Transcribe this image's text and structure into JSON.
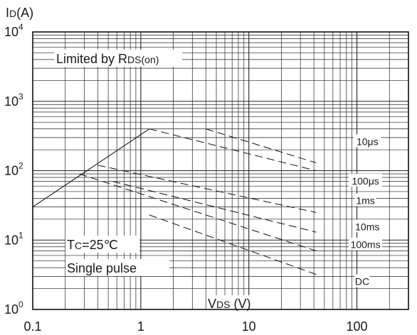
{
  "chart_data": {
    "type": "line",
    "title": "",
    "ylabel_main": "I",
    "ylabel_sub": "D",
    "ylabel_unit": "(A)",
    "xlabel_main": "V",
    "xlabel_sub": "DS",
    "xlabel_unit": " (V)",
    "x_scale": "log",
    "y_scale": "log",
    "xlim": [
      0.1,
      300
    ],
    "ylim": [
      1,
      10000
    ],
    "grid": true,
    "x_ticks": [
      {
        "value": 0.1,
        "label": "0.1"
      },
      {
        "value": 1,
        "label": "1"
      },
      {
        "value": 10,
        "label": "10"
      },
      {
        "value": 100,
        "label": "100"
      }
    ],
    "y_ticks": [
      {
        "value": 1,
        "base": "10",
        "exp": "0"
      },
      {
        "value": 10,
        "base": "10",
        "exp": "1"
      },
      {
        "value": 100,
        "base": "10",
        "exp": "2"
      },
      {
        "value": 1000,
        "base": "10",
        "exp": "3"
      },
      {
        "value": 10000,
        "base": "10",
        "exp": "4"
      }
    ],
    "annotations": {
      "limit_pre": "Limited by R",
      "limit_sub": "DS(on)",
      "tc_pre": "T",
      "tc_sub": "C",
      "tc_post": "=25℃",
      "pulse": "Single pulse"
    },
    "series": [
      {
        "name": "Limited by RDS(on)",
        "style": "solid",
        "x": [
          0.1,
          1.2
        ],
        "y": [
          30,
          400
        ]
      },
      {
        "name": "10μs",
        "style": "dashed",
        "x": [
          1.2,
          42
        ],
        "y": [
          400,
          100
        ]
      },
      {
        "name": "",
        "style": "dashed",
        "x": [
          4.0,
          42
        ],
        "y": [
          400,
          130
        ]
      },
      {
        "name": "100μs",
        "style": "dashed",
        "x": [
          0.4,
          42
        ],
        "y": [
          120,
          25
        ]
      },
      {
        "name": "1ms",
        "style": "dashed",
        "x": [
          0.55,
          42
        ],
        "y": [
          70,
          13
        ]
      },
      {
        "name": "10ms",
        "style": "dashed",
        "x": [
          0.27,
          42
        ],
        "y": [
          90,
          7
        ]
      },
      {
        "name": "100ms",
        "style": "dashed",
        "x": [
          1.2,
          42
        ],
        "y": [
          23,
          3.2
        ]
      }
    ],
    "curve_labels": [
      {
        "text": "10μs",
        "x": 125,
        "y": 270
      },
      {
        "text": "100μs",
        "x": 120,
        "y": 73
      },
      {
        "text": "1ms",
        "x": 120,
        "y": 38
      },
      {
        "text": "10ms",
        "x": 125,
        "y": 16
      },
      {
        "text": "100ms",
        "x": 120,
        "y": 8.8
      },
      {
        "text": "DC",
        "x": 112,
        "y": 2.6
      }
    ]
  }
}
